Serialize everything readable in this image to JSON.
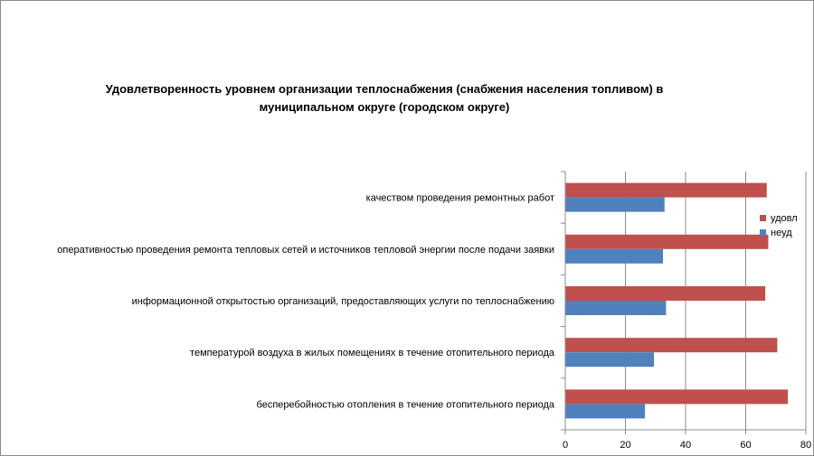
{
  "chart_data": {
    "type": "bar",
    "orientation": "horizontal",
    "title_line1": "Удовлетворенность уровнем организации теплоснабжения (снабжения населения топливом) в",
    "title_line2": "муниципальном округе (городском округе)",
    "categories": [
      "качеством проведения ремонтных работ",
      "оперативностью проведения ремонта тепловых сетей и источников тепловой энергии после подачи заявки",
      "информационной открытостью организаций, предоставляющих услуги по теплоснабжению",
      "температурой воздуха в жилых помещениях в течение отопительного периода",
      "бесперебойностью отопления в течение отопительного периода"
    ],
    "series": [
      {
        "name": "удовл",
        "color": "#c0504d",
        "values": [
          67,
          67.5,
          66.5,
          70.5,
          74
        ]
      },
      {
        "name": "неуд",
        "color": "#4f81bd",
        "values": [
          33,
          32.5,
          33.5,
          29.5,
          26.5
        ]
      }
    ],
    "xlim": [
      0,
      80
    ],
    "xticks": [
      "0",
      "20",
      "40",
      "60",
      "80"
    ],
    "grid": true,
    "legend_position": "right"
  }
}
